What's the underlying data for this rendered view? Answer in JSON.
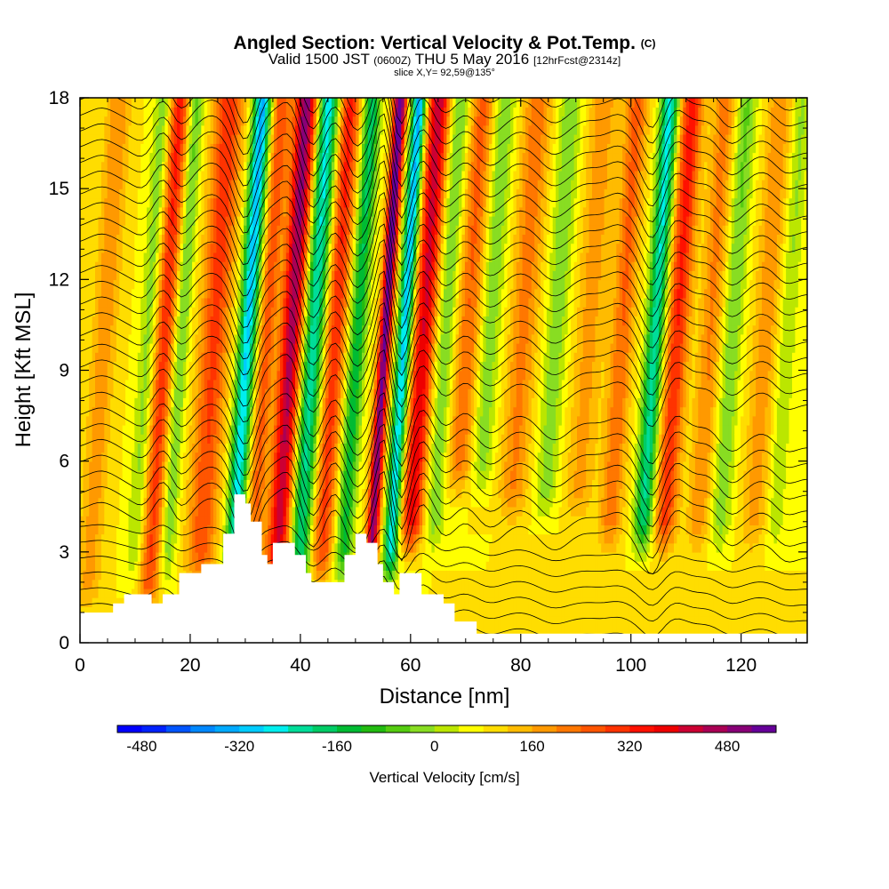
{
  "header": {
    "title": "Angled Section: Vertical Velocity & Pot.Temp.",
    "title_tag": "(C)",
    "valid_a": "Valid 1500 JST",
    "valid_z": "(0600Z)",
    "valid_b": "THU 5 May 2016",
    "fcst": "[12hrFcst@2314z]",
    "slice": "slice X,Y= 92,59@135°"
  },
  "chart_data": {
    "type": "heatmap",
    "xlabel": "Distance [nm]",
    "ylabel": "Height [Kft MSL]",
    "xlim": [
      0,
      132
    ],
    "ylim": [
      0,
      18
    ],
    "x_ticks": [
      "0",
      "20",
      "40",
      "60",
      "80",
      "100",
      "120"
    ],
    "y_ticks": [
      "0",
      "3",
      "6",
      "9",
      "12",
      "15",
      "18"
    ],
    "terrain_kft": [
      [
        0,
        1.0
      ],
      [
        5,
        1.0
      ],
      [
        6,
        1.3
      ],
      [
        8,
        1.6
      ],
      [
        12,
        1.6
      ],
      [
        13,
        1.3
      ],
      [
        15,
        1.6
      ],
      [
        18,
        2.3
      ],
      [
        22,
        2.6
      ],
      [
        26,
        3.6
      ],
      [
        28,
        4.9
      ],
      [
        30,
        4.6
      ],
      [
        31,
        4.0
      ],
      [
        33,
        2.9
      ],
      [
        34,
        2.6
      ],
      [
        35,
        3.3
      ],
      [
        37,
        3.3
      ],
      [
        39,
        2.9
      ],
      [
        41,
        2.3
      ],
      [
        42,
        2.0
      ],
      [
        46,
        2.0
      ],
      [
        48,
        2.9
      ],
      [
        50,
        3.6
      ],
      [
        52,
        3.3
      ],
      [
        54,
        2.6
      ],
      [
        55,
        2.0
      ],
      [
        57,
        1.6
      ],
      [
        58,
        2.3
      ],
      [
        61,
        2.3
      ],
      [
        62,
        1.6
      ],
      [
        66,
        1.3
      ],
      [
        68,
        0.7
      ],
      [
        72,
        0.3
      ],
      [
        132,
        0.3
      ]
    ],
    "velocity_bands": [
      {
        "x": 4,
        "w": 2.2,
        "amp": 120,
        "y0": 2,
        "y1": 18
      },
      {
        "x": 12,
        "w": 1.6,
        "amp": -110,
        "y0": 3,
        "y1": 18
      },
      {
        "x": 15,
        "w": 1.8,
        "amp": 260,
        "y0": 2,
        "y1": 18
      },
      {
        "x": 18,
        "w": 1.4,
        "amp": -140,
        "y0": 3,
        "y1": 18
      },
      {
        "x": 24,
        "w": 2.6,
        "amp": 240,
        "y0": 3,
        "y1": 18
      },
      {
        "x": 30,
        "w": 1.6,
        "amp": -420,
        "y0": 3,
        "y1": 18
      },
      {
        "x": 33.5,
        "w": 1.6,
        "amp": 200,
        "y0": 3,
        "y1": 18
      },
      {
        "x": 38,
        "w": 2.0,
        "amp": 430,
        "y0": 3,
        "y1": 18
      },
      {
        "x": 42,
        "w": 1.8,
        "amp": -350,
        "y0": 2,
        "y1": 18
      },
      {
        "x": 46,
        "w": 1.8,
        "amp": 260,
        "y0": 3,
        "y1": 18
      },
      {
        "x": 50,
        "w": 1.5,
        "amp": -260,
        "y0": 3,
        "y1": 18
      },
      {
        "x": 55,
        "w": 1.1,
        "amp": 520,
        "y0": 3,
        "y1": 18
      },
      {
        "x": 58.5,
        "w": 1.3,
        "amp": -430,
        "y0": 3,
        "y1": 18
      },
      {
        "x": 62,
        "w": 2.0,
        "amp": 360,
        "y0": 4,
        "y1": 18
      },
      {
        "x": 66,
        "w": 1.8,
        "amp": -130,
        "y0": 4,
        "y1": 18
      },
      {
        "x": 70,
        "w": 2.2,
        "amp": 180,
        "y0": 6,
        "y1": 18
      },
      {
        "x": 74,
        "w": 2.0,
        "amp": -120,
        "y0": 6,
        "y1": 18
      },
      {
        "x": 80,
        "w": 2.5,
        "amp": 150,
        "y0": 5,
        "y1": 18
      },
      {
        "x": 86,
        "w": 2.0,
        "amp": -120,
        "y0": 5,
        "y1": 18
      },
      {
        "x": 92,
        "w": 2.5,
        "amp": 110,
        "y0": 5,
        "y1": 18
      },
      {
        "x": 98,
        "w": 2.0,
        "amp": 180,
        "y0": 4,
        "y1": 18
      },
      {
        "x": 104,
        "w": 1.6,
        "amp": -350,
        "y0": 4,
        "y1": 18
      },
      {
        "x": 108,
        "w": 2.0,
        "amp": 270,
        "y0": 4,
        "y1": 18
      },
      {
        "x": 114,
        "w": 2.0,
        "amp": 140,
        "y0": 4,
        "y1": 18
      },
      {
        "x": 118,
        "w": 1.8,
        "amp": -130,
        "y0": 4,
        "y1": 18
      },
      {
        "x": 124,
        "w": 2.2,
        "amp": 120,
        "y0": 4,
        "y1": 18
      },
      {
        "x": 128,
        "w": 1.6,
        "amp": -90,
        "y0": 4,
        "y1": 18
      }
    ],
    "colorbar": {
      "title": "Vertical Velocity [cm/s]",
      "ticks": [
        "-480",
        "-320",
        "-160",
        "0",
        "160",
        "320",
        "480"
      ],
      "colors": [
        "#0000ff",
        "#0022ff",
        "#0055ff",
        "#0088ff",
        "#00aaff",
        "#00ccff",
        "#00eeee",
        "#00dd99",
        "#00cc66",
        "#00bb33",
        "#22bb11",
        "#55cc11",
        "#88dd22",
        "#bbe600",
        "#ffff00",
        "#ffdd00",
        "#ffbb00",
        "#ff9900",
        "#ff7700",
        "#ff5500",
        "#ff3300",
        "#ff1100",
        "#ee0000",
        "#cc0033",
        "#aa0055",
        "#880077",
        "#660099"
      ]
    }
  }
}
